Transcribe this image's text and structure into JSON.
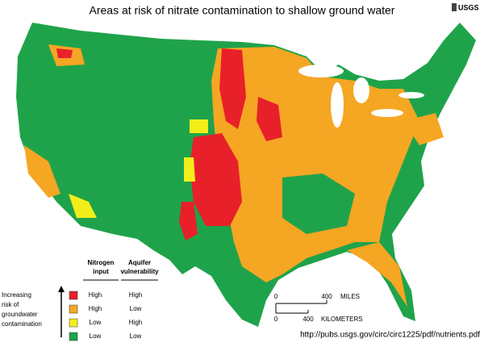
{
  "title": "Areas at risk of nitrate contamination to shallow ground water",
  "logo": "USGS",
  "legend": {
    "side_label": [
      "Increasing",
      "risk of",
      "groundwater",
      "contamination"
    ],
    "headers": [
      [
        "Nitrogen",
        "input"
      ],
      [
        "Aquifer",
        "vulnerability"
      ]
    ],
    "rows": [
      {
        "color": "#e8202a",
        "nitrogen": "High",
        "aquifer": "High"
      },
      {
        "color": "#f5a623",
        "nitrogen": "High",
        "aquifer": "Low"
      },
      {
        "color": "#f2ee1a",
        "nitrogen": "Low",
        "aquifer": "High"
      },
      {
        "color": "#1fa34a",
        "nitrogen": "Low",
        "aquifer": "Low"
      }
    ]
  },
  "scale": {
    "miles": {
      "start": 0,
      "end": 400,
      "unit": "MILES"
    },
    "km": {
      "start": 0,
      "end": 400,
      "unit": "KILOMETERS"
    }
  },
  "source": "http://pubs.usgs.gov/circ/circ1225/pdf/nutrients.pdf"
}
